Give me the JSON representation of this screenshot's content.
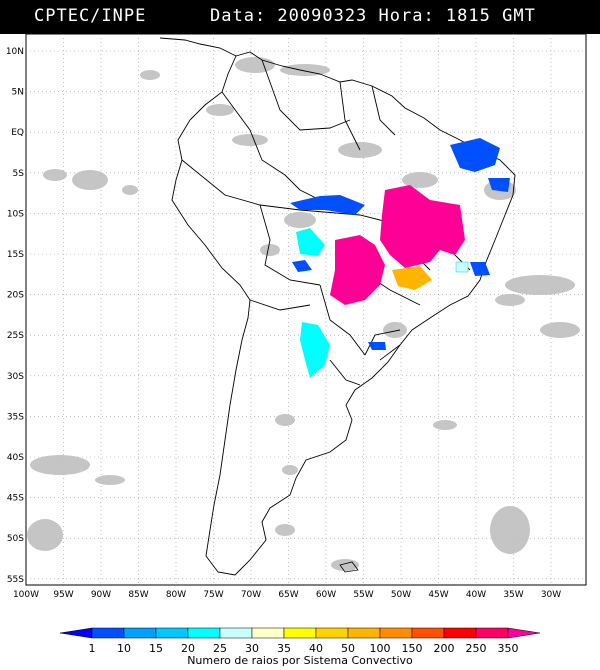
{
  "header": {
    "source": "CPTEC/INPE",
    "datetime": "Data: 20090323 Hora: 1815 GMT"
  },
  "map": {
    "lat_labels": [
      "10N",
      "5N",
      "EQ",
      "5S",
      "10S",
      "15S",
      "20S",
      "25S",
      "30S",
      "35S",
      "40S",
      "45S",
      "50S",
      "55S"
    ],
    "lon_labels": [
      "100W",
      "95W",
      "90W",
      "85W",
      "80W",
      "75W",
      "70W",
      "65W",
      "60W",
      "55W",
      "50W",
      "45W",
      "40W",
      "35W",
      "30W"
    ]
  },
  "legend": {
    "values": [
      "1",
      "10",
      "15",
      "20",
      "25",
      "30",
      "35",
      "40",
      "50",
      "100",
      "150",
      "200",
      "250",
      "350"
    ],
    "colors": [
      "#0000ff",
      "#0050ff",
      "#00a0ff",
      "#00c8ff",
      "#00ffff",
      "#c8ffff",
      "#ffffc8",
      "#ffff00",
      "#ffd200",
      "#ffb400",
      "#ff8c00",
      "#ff5000",
      "#ff0000",
      "#ff0064",
      "#ff0096"
    ],
    "title": "Numero de raios por Sistema Convectivo"
  }
}
